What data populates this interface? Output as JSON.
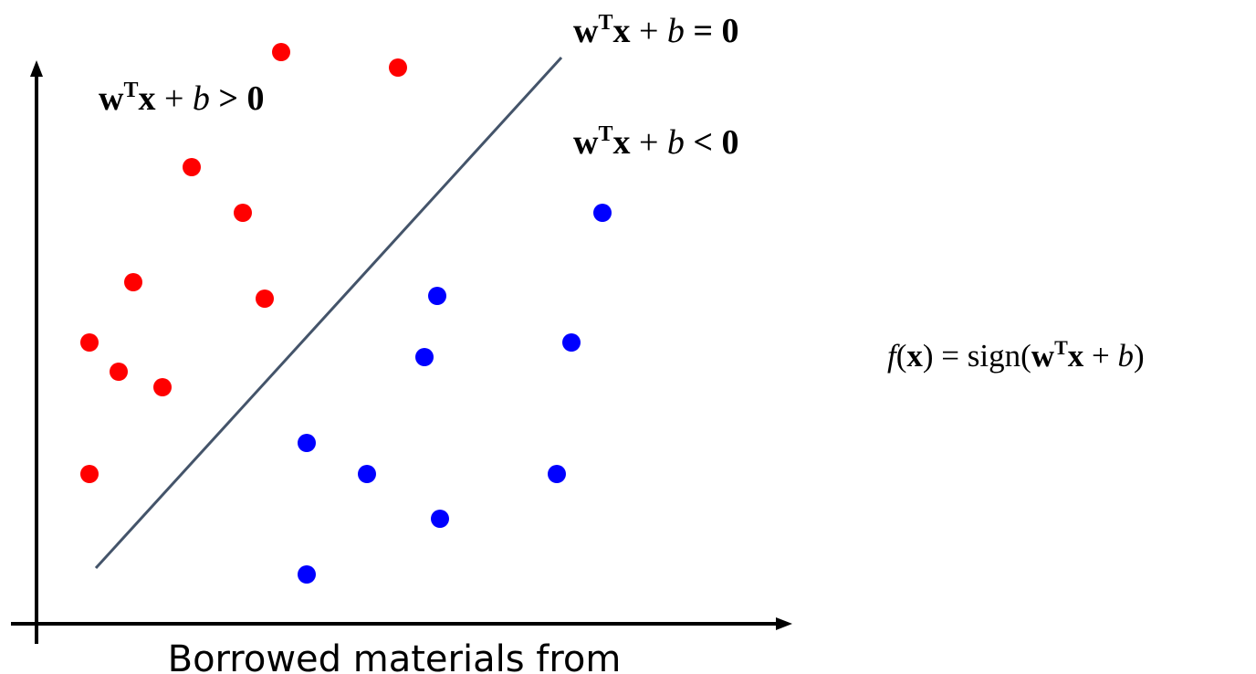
{
  "diagram": {
    "colors": {
      "positive": "#ff0000",
      "negative": "#0000ff",
      "boundary": "#44546a",
      "axis": "#000000"
    },
    "labels": {
      "boundary": {
        "w": "w",
        "sup": "T",
        "x": "x",
        "plus": " + ",
        "b": "b",
        "rel": " = 0"
      },
      "positive_region": {
        "w": "w",
        "sup": "T",
        "x": "x",
        "plus": " + ",
        "b": "b",
        "rel": " > 0"
      },
      "negative_region": {
        "w": "w",
        "sup": "T",
        "x": "x",
        "plus": " + ",
        "b": "b",
        "rel": " < 0"
      },
      "classifier": {
        "f": "f",
        "open": "(",
        "x": "x",
        "close_eq": ") = sign(",
        "w": "w",
        "sup": "T",
        "x2": "x",
        "plus": " + ",
        "b": "b",
        "end": ")"
      }
    },
    "caption": "Borrowed materials from"
  }
}
